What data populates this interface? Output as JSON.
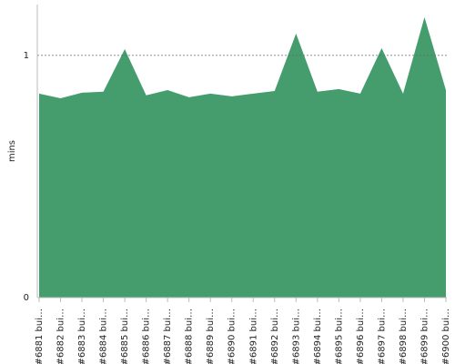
{
  "chart_data": {
    "type": "area",
    "y_label": "mins",
    "categories": [
      "#6881 bui…",
      "#6882 bui…",
      "#6883 bui…",
      "#6884 bui…",
      "#6885 bui…",
      "#6886 bui…",
      "#6887 bui…",
      "#6888 bui…",
      "#6889 bui…",
      "#6890 bui…",
      "#6891 bui…",
      "#6892 bui…",
      "#6893 bui…",
      "#6894 bui…",
      "#6895 bui…",
      "#6896 bui…",
      "#6897 bui…",
      "#6898 bui…",
      "#6899 bui…",
      "#6900 bui…"
    ],
    "values": [
      0.842,
      0.823,
      0.846,
      0.85,
      1.026,
      0.835,
      0.857,
      0.827,
      0.842,
      0.831,
      0.842,
      0.853,
      1.09,
      0.85,
      0.861,
      0.842,
      1.03,
      0.842,
      1.158,
      0.857
    ],
    "color": "#459d6d",
    "ylim": [
      0,
      1.21
    ],
    "yticks": [
      0,
      1
    ],
    "grid": true
  }
}
